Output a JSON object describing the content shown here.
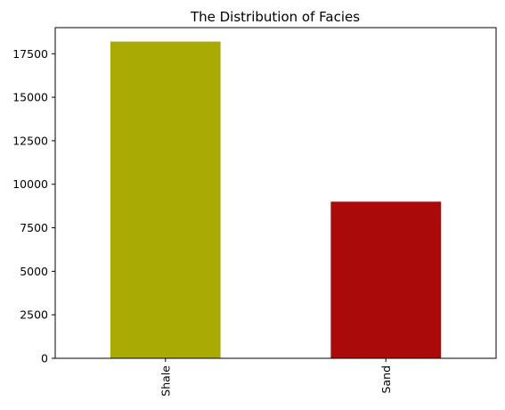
{
  "chart_data": {
    "type": "bar",
    "title": "The Distribution of Facies",
    "xlabel": "",
    "ylabel": "",
    "categories": [
      "Shale",
      "Sand"
    ],
    "values": [
      18200,
      9000
    ],
    "colors": [
      "#aaaa05",
      "#aa0a0a"
    ],
    "ylim": [
      0,
      19000
    ],
    "yticks": [
      0,
      2500,
      5000,
      7500,
      10000,
      12500,
      15000,
      17500
    ],
    "grid": false,
    "legend": "none"
  }
}
